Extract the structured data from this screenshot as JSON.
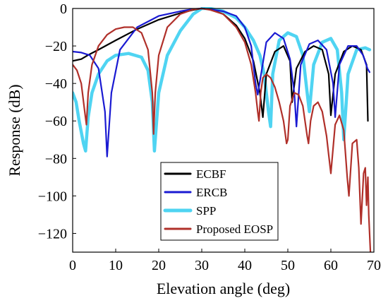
{
  "chart_data": {
    "type": "line",
    "title": "",
    "xlabel": "Elevation angle (deg)",
    "ylabel": "Response (dB)",
    "xlim": [
      0,
      70
    ],
    "ylim": [
      -130,
      0
    ],
    "xticks": [
      0,
      10,
      20,
      30,
      40,
      50,
      60,
      70
    ],
    "yticks": [
      0,
      -20,
      -40,
      -60,
      -80,
      -100,
      -120
    ],
    "grid": false,
    "legend_position": "bottom-center",
    "series": [
      {
        "name": "ECBF",
        "color": "#000000",
        "x": [
          0,
          2,
          3.5,
          6,
          10,
          15,
          20,
          25,
          28,
          30,
          32,
          35,
          38,
          40,
          42,
          43.5,
          44.2,
          45,
          47,
          49,
          50.5,
          51,
          52,
          54,
          56,
          58,
          59.5,
          60,
          61,
          63,
          65,
          67,
          68.3,
          68.6
        ],
        "y": [
          -28,
          -27,
          -25,
          -22,
          -17,
          -11,
          -6,
          -2.5,
          -0.8,
          0,
          -0.5,
          -3,
          -9,
          -16,
          -28,
          -45,
          -58,
          -35,
          -23,
          -20,
          -28,
          -50,
          -32,
          -23,
          -20,
          -22,
          -35,
          -57,
          -35,
          -23,
          -20,
          -22,
          -30,
          -60
        ]
      },
      {
        "name": "ERCB",
        "color": "#1a1ad2",
        "x": [
          0,
          2,
          4,
          6,
          7.5,
          8,
          9,
          11,
          15,
          20,
          25,
          28,
          30,
          32,
          35,
          38,
          40,
          41.5,
          42.5,
          43,
          45,
          47,
          49,
          50.5,
          51.5,
          52,
          53,
          55,
          57,
          59,
          60.5,
          61,
          62,
          64,
          66,
          67.5,
          68.5,
          69
        ],
        "y": [
          -23,
          -23.5,
          -25,
          -32,
          -55,
          -79,
          -45,
          -22,
          -10,
          -4,
          -1.5,
          -0.3,
          0,
          -0.5,
          -1.5,
          -4,
          -10,
          -20,
          -40,
          -46,
          -18,
          -13,
          -16,
          -27,
          -45,
          -63,
          -30,
          -19,
          -17,
          -22,
          -40,
          -58,
          -30,
          -20,
          -20,
          -25,
          -32,
          -34
        ]
      },
      {
        "name": "SPP",
        "color": "#4fd4f2",
        "x": [
          0,
          0.8,
          1.5,
          2.5,
          3,
          3.6,
          4.5,
          6,
          8,
          10,
          13,
          16,
          17.5,
          18.5,
          19,
          20,
          22,
          25,
          28,
          30,
          32,
          35,
          38,
          40,
          42,
          43.5,
          44.5,
          45.5,
          46,
          46.5,
          48,
          50,
          52,
          53.5,
          54.5,
          55,
          56,
          58,
          60,
          61.5,
          62.5,
          63,
          64,
          66,
          68,
          69
        ],
        "y": [
          -45,
          -50,
          -60,
          -72,
          -76,
          -58,
          -45,
          -35,
          -28,
          -25,
          -24,
          -26,
          -33,
          -50,
          -76,
          -45,
          -25,
          -12,
          -3,
          0,
          0,
          -1.5,
          -5,
          -10,
          -17,
          -25,
          -35,
          -55,
          -63,
          -35,
          -17,
          -13,
          -15,
          -25,
          -45,
          -55,
          -30,
          -18,
          -16,
          -22,
          -45,
          -70,
          -35,
          -22,
          -21,
          -22
        ]
      },
      {
        "name": "Proposed EOSP",
        "color": "#b0302a",
        "x": [
          0,
          1,
          2,
          2.8,
          3.2,
          3.6,
          4.5,
          6,
          8,
          10,
          12,
          14,
          16,
          17.5,
          18.5,
          18.8,
          19.2,
          20,
          22,
          25,
          28,
          30,
          32,
          35,
          38,
          40,
          41.5,
          42.5,
          43,
          43.3,
          43.7,
          44.2,
          45,
          46,
          47,
          48,
          49,
          49.7,
          50,
          50.5,
          51.5,
          52.5,
          53.5,
          54.5,
          54.8,
          55.3,
          56,
          57,
          58,
          59,
          59.5,
          60,
          61,
          62,
          63,
          63.8,
          64.2,
          65,
          66,
          66.5,
          67,
          67.6,
          68,
          68.3,
          68.6,
          68.8,
          69.2
        ],
        "y": [
          -30,
          -33,
          -40,
          -55,
          -62,
          -45,
          -30,
          -20,
          -14,
          -11,
          -10,
          -10,
          -13,
          -22,
          -45,
          -67,
          -45,
          -25,
          -10,
          -3,
          -0.5,
          0,
          -0.8,
          -3,
          -10,
          -18,
          -30,
          -45,
          -55,
          -60,
          -45,
          -37,
          -35,
          -37,
          -42,
          -50,
          -60,
          -72,
          -70,
          -52,
          -45,
          -46,
          -52,
          -68,
          -72,
          -60,
          -52,
          -50,
          -55,
          -68,
          -78,
          -88,
          -62,
          -57,
          -65,
          -90,
          -100,
          -72,
          -70,
          -85,
          -115,
          -88,
          -85,
          -105,
          -90,
          -110,
          -130
        ]
      }
    ]
  }
}
